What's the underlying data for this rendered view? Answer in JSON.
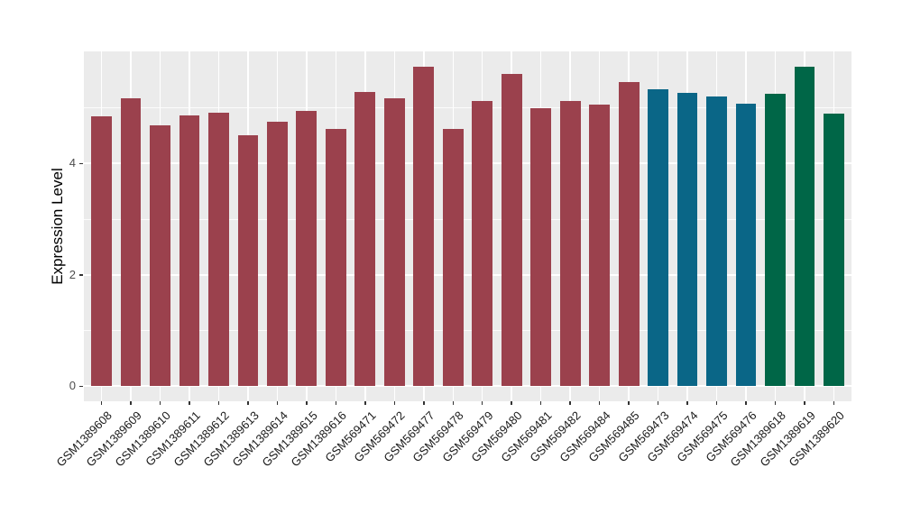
{
  "figure": {
    "background": "#FFFFFF",
    "panel_background": "#EBEBEB",
    "gridline_color": "#FFFFFF",
    "tick_color": "#333333",
    "axis_text_color": "#4D4D4D"
  },
  "chart_data": {
    "type": "bar",
    "ylabel": "Expression Level",
    "xlabel": "",
    "ylim": [
      0,
      6
    ],
    "yticks": [
      0,
      2,
      4
    ],
    "ytick_labels": [
      "0",
      "2",
      "4"
    ],
    "yticks_minor": [
      1,
      3,
      5
    ],
    "grid": "on",
    "legend": "none",
    "x_label_rotation_deg": 45,
    "categories": [
      "GSM1389608",
      "GSM1389609",
      "GSM1389610",
      "GSM1389611",
      "GSM1389612",
      "GSM1389613",
      "GSM1389614",
      "GSM1389615",
      "GSM1389616",
      "GSM569471",
      "GSM569472",
      "GSM569477",
      "GSM569478",
      "GSM569479",
      "GSM569480",
      "GSM569481",
      "GSM569482",
      "GSM569484",
      "GSM569485",
      "GSM569473",
      "GSM569474",
      "GSM569475",
      "GSM569476",
      "GSM1389618",
      "GSM1389619",
      "GSM1389620"
    ],
    "values": [
      4.84,
      5.17,
      4.68,
      4.87,
      4.91,
      4.5,
      4.75,
      4.94,
      4.62,
      5.28,
      5.17,
      5.73,
      4.62,
      5.13,
      5.61,
      4.99,
      5.13,
      5.06,
      5.46,
      5.34,
      5.27,
      5.21,
      5.07,
      5.25,
      5.74,
      4.89
    ],
    "bar_colors": [
      "#9B414D",
      "#9B414D",
      "#9B414D",
      "#9B414D",
      "#9B414D",
      "#9B414D",
      "#9B414D",
      "#9B414D",
      "#9B414D",
      "#9B414D",
      "#9B414D",
      "#9B414D",
      "#9B414D",
      "#9B414D",
      "#9B414D",
      "#9B414D",
      "#9B414D",
      "#9B414D",
      "#9B414D",
      "#0A6687",
      "#0A6687",
      "#0A6687",
      "#0A6687",
      "#006647",
      "#006647",
      "#006647"
    ]
  }
}
